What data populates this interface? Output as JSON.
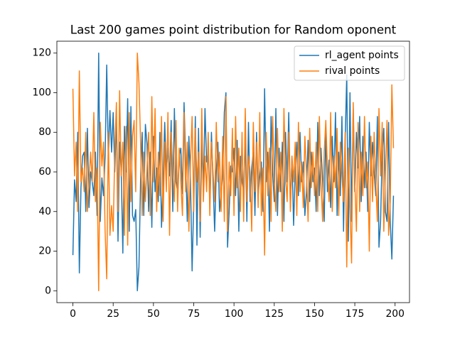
{
  "chart_data": {
    "type": "line",
    "title": "Last 200 games point distribution for Random oponent",
    "x": [
      0,
      1,
      2,
      3,
      4,
      5,
      6,
      7,
      8,
      9,
      10,
      11,
      12,
      13,
      14,
      15,
      16,
      17,
      18,
      19,
      20,
      21,
      22,
      23,
      24,
      25,
      26,
      27,
      28,
      29,
      30,
      31,
      32,
      33,
      34,
      35,
      36,
      37,
      38,
      39,
      40,
      41,
      42,
      43,
      44,
      45,
      46,
      47,
      48,
      49,
      50,
      51,
      52,
      53,
      54,
      55,
      56,
      57,
      58,
      59,
      60,
      61,
      62,
      63,
      64,
      65,
      66,
      67,
      68,
      69,
      70,
      71,
      72,
      73,
      74,
      75,
      76,
      77,
      78,
      79,
      80,
      81,
      82,
      83,
      84,
      85,
      86,
      87,
      88,
      89,
      90,
      91,
      92,
      93,
      94,
      95,
      96,
      97,
      98,
      99,
      100,
      101,
      102,
      103,
      104,
      105,
      106,
      107,
      108,
      109,
      110,
      111,
      112,
      113,
      114,
      115,
      116,
      117,
      118,
      119,
      120,
      121,
      122,
      123,
      124,
      125,
      126,
      127,
      128,
      129,
      130,
      131,
      132,
      133,
      134,
      135,
      136,
      137,
      138,
      139,
      140,
      141,
      142,
      143,
      144,
      145,
      146,
      147,
      148,
      149,
      150,
      151,
      152,
      153,
      154,
      155,
      156,
      157,
      158,
      159,
      160,
      161,
      162,
      163,
      164,
      165,
      166,
      167,
      168,
      169,
      170,
      171,
      172,
      173,
      174,
      175,
      176,
      177,
      178,
      179,
      180,
      181,
      182,
      183,
      184,
      185,
      186,
      187,
      188,
      189,
      190,
      191,
      192,
      193,
      194,
      195,
      196,
      197,
      198,
      199
    ],
    "series": [
      {
        "name": "rl_agent points",
        "color": "#1f77b4",
        "values": [
          18,
          56,
          45,
          80,
          9,
          52,
          68,
          70,
          40,
          82,
          42,
          60,
          55,
          48,
          70,
          38,
          120,
          35,
          57,
          48,
          68,
          114,
          67,
          91,
          70,
          90,
          60,
          88,
          25,
          75,
          60,
          19,
          83,
          60,
          97,
          30,
          93,
          38,
          35,
          41,
          0,
          12,
          55,
          80,
          38,
          84,
          74,
          40,
          70,
          32,
          78,
          50,
          62,
          45,
          80,
          32,
          55,
          85,
          60,
          72,
          58,
          86,
          40,
          92,
          55,
          50,
          68,
          72,
          49,
          95,
          65,
          35,
          78,
          55,
          10,
          45,
          88,
          23,
          82,
          27,
          75,
          50,
          92,
          65,
          70,
          45,
          80,
          55,
          30,
          60,
          75,
          40,
          50,
          58,
          90,
          100,
          22,
          40,
          63,
          60,
          72,
          48,
          76,
          30,
          68,
          55,
          50,
          78,
          35,
          85,
          45,
          62,
          70,
          38,
          80,
          48,
          58,
          65,
          40,
          102,
          55,
          70,
          30,
          88,
          60,
          45,
          92,
          38,
          72,
          50,
          75,
          35,
          80,
          55,
          90,
          42,
          68,
          33,
          60,
          75,
          48,
          80,
          55,
          65,
          38,
          50,
          76,
          45,
          70,
          55,
          62,
          40,
          85,
          48,
          72,
          56,
          35,
          80,
          50,
          66,
          42,
          78,
          55,
          90,
          38,
          70,
          48,
          88,
          30,
          75,
          109,
          25,
          100,
          35,
          92,
          50,
          80,
          62,
          88,
          45,
          78,
          52,
          70,
          40,
          85,
          58,
          75,
          60,
          48,
          88,
          22,
          35,
          70,
          82,
          40,
          35,
          85,
          35,
          16,
          48
        ]
      },
      {
        "name": "rival points",
        "color": "#ff7f0e",
        "values": [
          102,
          58,
          75,
          40,
          111,
          55,
          62,
          50,
          80,
          40,
          55,
          70,
          55,
          90,
          45,
          62,
          0,
          85,
          63,
          75,
          30,
          6,
          80,
          28,
          43,
          30,
          70,
          95,
          40,
          101,
          58,
          75,
          28,
          83,
          23,
          90,
          45,
          78,
          86,
          50,
          120,
          105,
          75,
          38,
          70,
          45,
          62,
          80,
          38,
          98,
          55,
          92,
          40,
          70,
          48,
          88,
          35,
          75,
          50,
          90,
          28,
          80,
          62,
          45,
          86,
          40,
          72,
          55,
          38,
          90,
          50,
          75,
          30,
          65,
          88,
          40,
          82,
          55,
          70,
          35,
          92,
          45,
          68,
          50,
          80,
          38,
          75,
          60,
          45,
          85,
          55,
          70,
          40,
          78,
          35,
          98,
          30,
          65,
          48,
          82,
          38,
          88,
          52,
          72,
          40,
          80,
          35,
          92,
          45,
          68,
          60,
          30,
          85,
          50,
          75,
          42,
          90,
          38,
          62,
          18,
          80,
          48,
          72,
          35,
          88,
          55,
          40,
          82,
          50,
          70,
          30,
          92,
          58,
          45,
          80,
          40,
          68,
          55,
          75,
          38,
          85,
          50,
          65,
          42,
          78,
          60,
          35,
          82,
          52,
          70,
          48,
          75,
          40,
          88,
          55,
          35,
          70,
          86,
          62,
          45,
          90,
          40,
          68,
          52,
          82,
          38,
          75,
          58,
          45,
          80,
          12,
          72,
          42,
          14,
          95,
          55,
          30,
          85,
          40,
          70,
          48,
          88,
          52,
          65,
          20,
          78,
          45,
          80,
          55,
          35,
          92,
          58,
          85,
          30,
          60,
          86,
          28,
          45,
          104,
          72
        ]
      }
    ],
    "xlim": [
      -9.95,
      208.95
    ],
    "xticks": [
      0,
      25,
      50,
      75,
      100,
      125,
      150,
      175,
      200
    ],
    "ylim": [
      -6,
      126
    ],
    "yticks": [
      0,
      20,
      40,
      60,
      80,
      100,
      120
    ],
    "legend": "upper right"
  }
}
